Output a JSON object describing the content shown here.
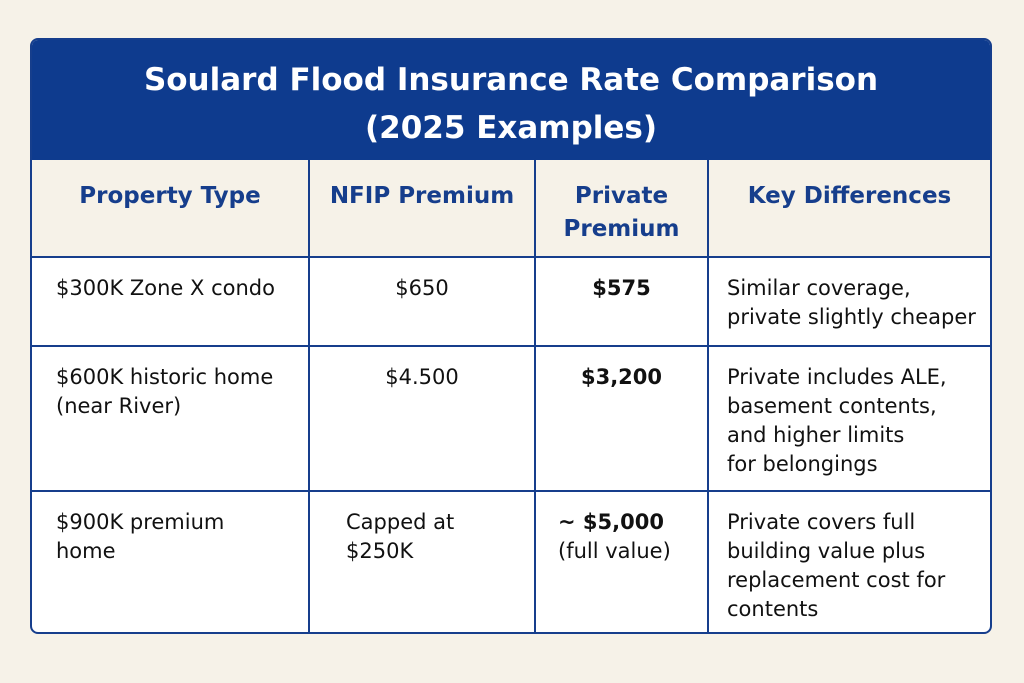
{
  "title": [
    "Soulard Flood Insurance Rate Comparison",
    "(2025 Examples)"
  ],
  "table": {
    "header": [
      [
        "Property Type"
      ],
      [
        "NFIP Premium"
      ],
      [
        "Private",
        "Premium"
      ],
      [
        "Key Differences"
      ]
    ],
    "rows": [
      [
        [
          "$300K Zone X condo"
        ],
        [
          "$650"
        ],
        [
          "$575"
        ],
        [
          "Similar coverage,",
          "private slightly cheaper"
        ]
      ],
      [
        [
          "$600K historic home",
          "(near River)"
        ],
        [
          "$4.500"
        ],
        [
          "$3,200"
        ],
        [
          "Private includes ALE,",
          "basement contents,",
          "and higher limits",
          "for belongings"
        ]
      ],
      [
        [
          "$900K premium",
          "home"
        ],
        [
          "Capped at",
          "$250K"
        ],
        [
          "~ $5,000",
          "(full value)"
        ],
        [
          "Private covers full",
          "building value plus",
          "replacement cost for",
          "contents"
        ]
      ]
    ]
  }
}
